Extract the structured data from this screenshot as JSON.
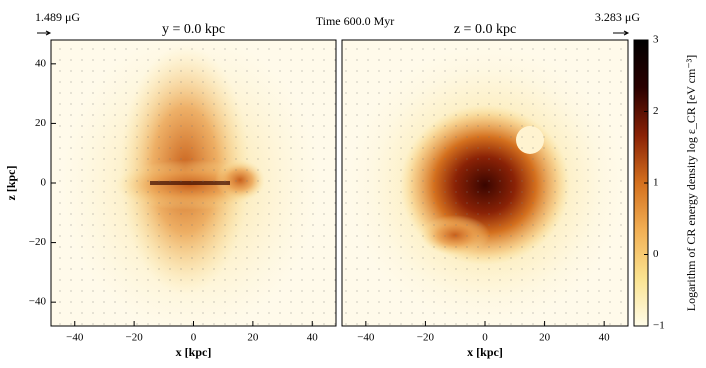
{
  "figure_title": "Time 600.0 Myr",
  "chart_data": [
    {
      "type": "heatmap",
      "title": "y = 0.0 kpc",
      "x_label": "x [kpc]",
      "y_label": "z [kpc]",
      "annotation": "1.489 μG",
      "xlim": [
        -48,
        48
      ],
      "ylim": [
        -48,
        48
      ],
      "xticks": [
        {
          "value": -40,
          "label": "−40"
        },
        {
          "value": -20,
          "label": "−20"
        },
        0,
        20,
        40
      ],
      "yticks": [
        {
          "value": -40,
          "label": "−40"
        },
        {
          "value": -20,
          "label": "−20"
        },
        0,
        20,
        40
      ]
    },
    {
      "type": "heatmap",
      "title": "z = 0.0 kpc",
      "x_label": "x [kpc]",
      "annotation": "3.283 μG",
      "xlim": [
        -48,
        48
      ],
      "ylim": [
        -48,
        48
      ],
      "xticks": [
        {
          "value": -40,
          "label": "−40"
        },
        {
          "value": -20,
          "label": "−20"
        },
        0,
        20,
        40
      ]
    }
  ],
  "colorbar": {
    "label": "Logarithm of CR energy density log ε_CR [eV cm⁻³]",
    "lim": [
      -1,
      3
    ],
    "ticks": [
      {
        "value": -1,
        "label": "−1"
      },
      0,
      1,
      2,
      3
    ],
    "colors": [
      "#fffce8",
      "#fbe390",
      "#f2b055",
      "#d4701e",
      "#8a2206",
      "#2a0000",
      "#000000"
    ]
  }
}
